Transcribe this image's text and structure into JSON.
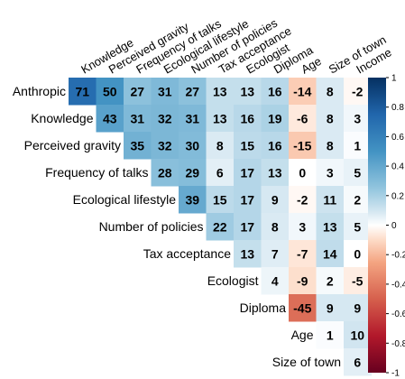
{
  "chart_data": {
    "type": "heatmap",
    "subtype": "upper-triangular correlation matrix",
    "variables": [
      "Anthropic",
      "Knowledge",
      "Perceived gravity",
      "Frequency of talks",
      "Ecological lifestyle",
      "Number of policies",
      "Tax acceptance",
      "Ecologist",
      "Diploma",
      "Age",
      "Size of town",
      "Income"
    ],
    "row_labels": [
      "Anthropic",
      "Knowledge",
      "Perceived gravity",
      "Frequency of talks",
      "Ecological lifestyle",
      "Number of policies",
      "Tax acceptance",
      "Ecologist",
      "Diploma",
      "Age",
      "Size of town"
    ],
    "column_labels": [
      "Knowledge",
      "Perceived gravity",
      "Frequency of talks",
      "Ecological lifestyle",
      "Number of policies",
      "Tax acceptance",
      "Ecologist",
      "Diploma",
      "Age",
      "Size of town",
      "Income"
    ],
    "values": [
      [
        71,
        50,
        27,
        31,
        27,
        13,
        13,
        16,
        -14,
        8,
        -2
      ],
      [
        43,
        31,
        32,
        31,
        13,
        16,
        19,
        -6,
        8,
        3
      ],
      [
        35,
        32,
        30,
        8,
        15,
        16,
        -15,
        8,
        1
      ],
      [
        28,
        29,
        6,
        17,
        13,
        0,
        3,
        5
      ],
      [
        39,
        15,
        17,
        9,
        -2,
        11,
        2
      ],
      [
        22,
        17,
        8,
        3,
        13,
        5
      ],
      [
        13,
        7,
        -7,
        14,
        0
      ],
      [
        4,
        -9,
        2,
        -5
      ],
      [
        -45,
        9,
        9
      ],
      [
        1,
        10
      ],
      [
        6
      ]
    ],
    "value_scale": "correlation x 100",
    "colorbar": {
      "range": [
        -1,
        1
      ],
      "ticks": [
        "1",
        "0.8",
        "0.6",
        "0.4",
        "0.2",
        "0",
        "-0.2",
        "-0.4",
        "-0.6",
        "-0.8",
        "-1"
      ],
      "placement": "right"
    },
    "colors": {
      "positive_strong": "#2166ac",
      "negative_strong": "#b2182b",
      "neutral": "#ffffff",
      "text": "#000000"
    },
    "grid": false
  }
}
